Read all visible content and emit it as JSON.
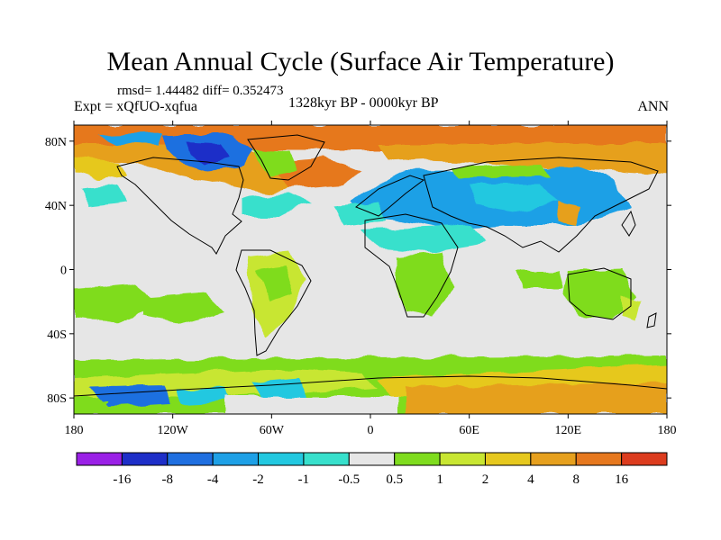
{
  "title": "Mean Annual Cycle (Surface Air Temperature)",
  "stats_line": "rmsd= 1.44482 diff= 0.352473",
  "experiment": "Expt = xQfUO-xqfua",
  "period": "1328kyr BP - 0000kyr BP",
  "season": "ANN",
  "lat_labels": [
    "80N",
    "40N",
    "0",
    "40S",
    "80S"
  ],
  "lat_values": [
    80,
    40,
    0,
    -40,
    -80
  ],
  "lon_labels": [
    "180",
    "120W",
    "60W",
    "0",
    "60E",
    "120E",
    "180"
  ],
  "lon_values": [
    -180,
    -120,
    -60,
    0,
    60,
    120,
    180
  ],
  "colorbar": {
    "labels": [
      "-16",
      "-8",
      "-4",
      "-2",
      "-1",
      "-0.5",
      "0.5",
      "1",
      "2",
      "4",
      "8",
      "16"
    ],
    "colors": [
      "#9a20e6",
      "#1e2fc8",
      "#1f6fe0",
      "#1ea0e6",
      "#22c8e0",
      "#37e0cc",
      "#e6e6e6",
      "#7fdc1e",
      "#c8e632",
      "#e6c81e",
      "#e6a01e",
      "#e6781e",
      "#dc3c1e"
    ]
  },
  "colors": {
    "land": "#e6e6e6",
    "coast": "#000000"
  }
}
